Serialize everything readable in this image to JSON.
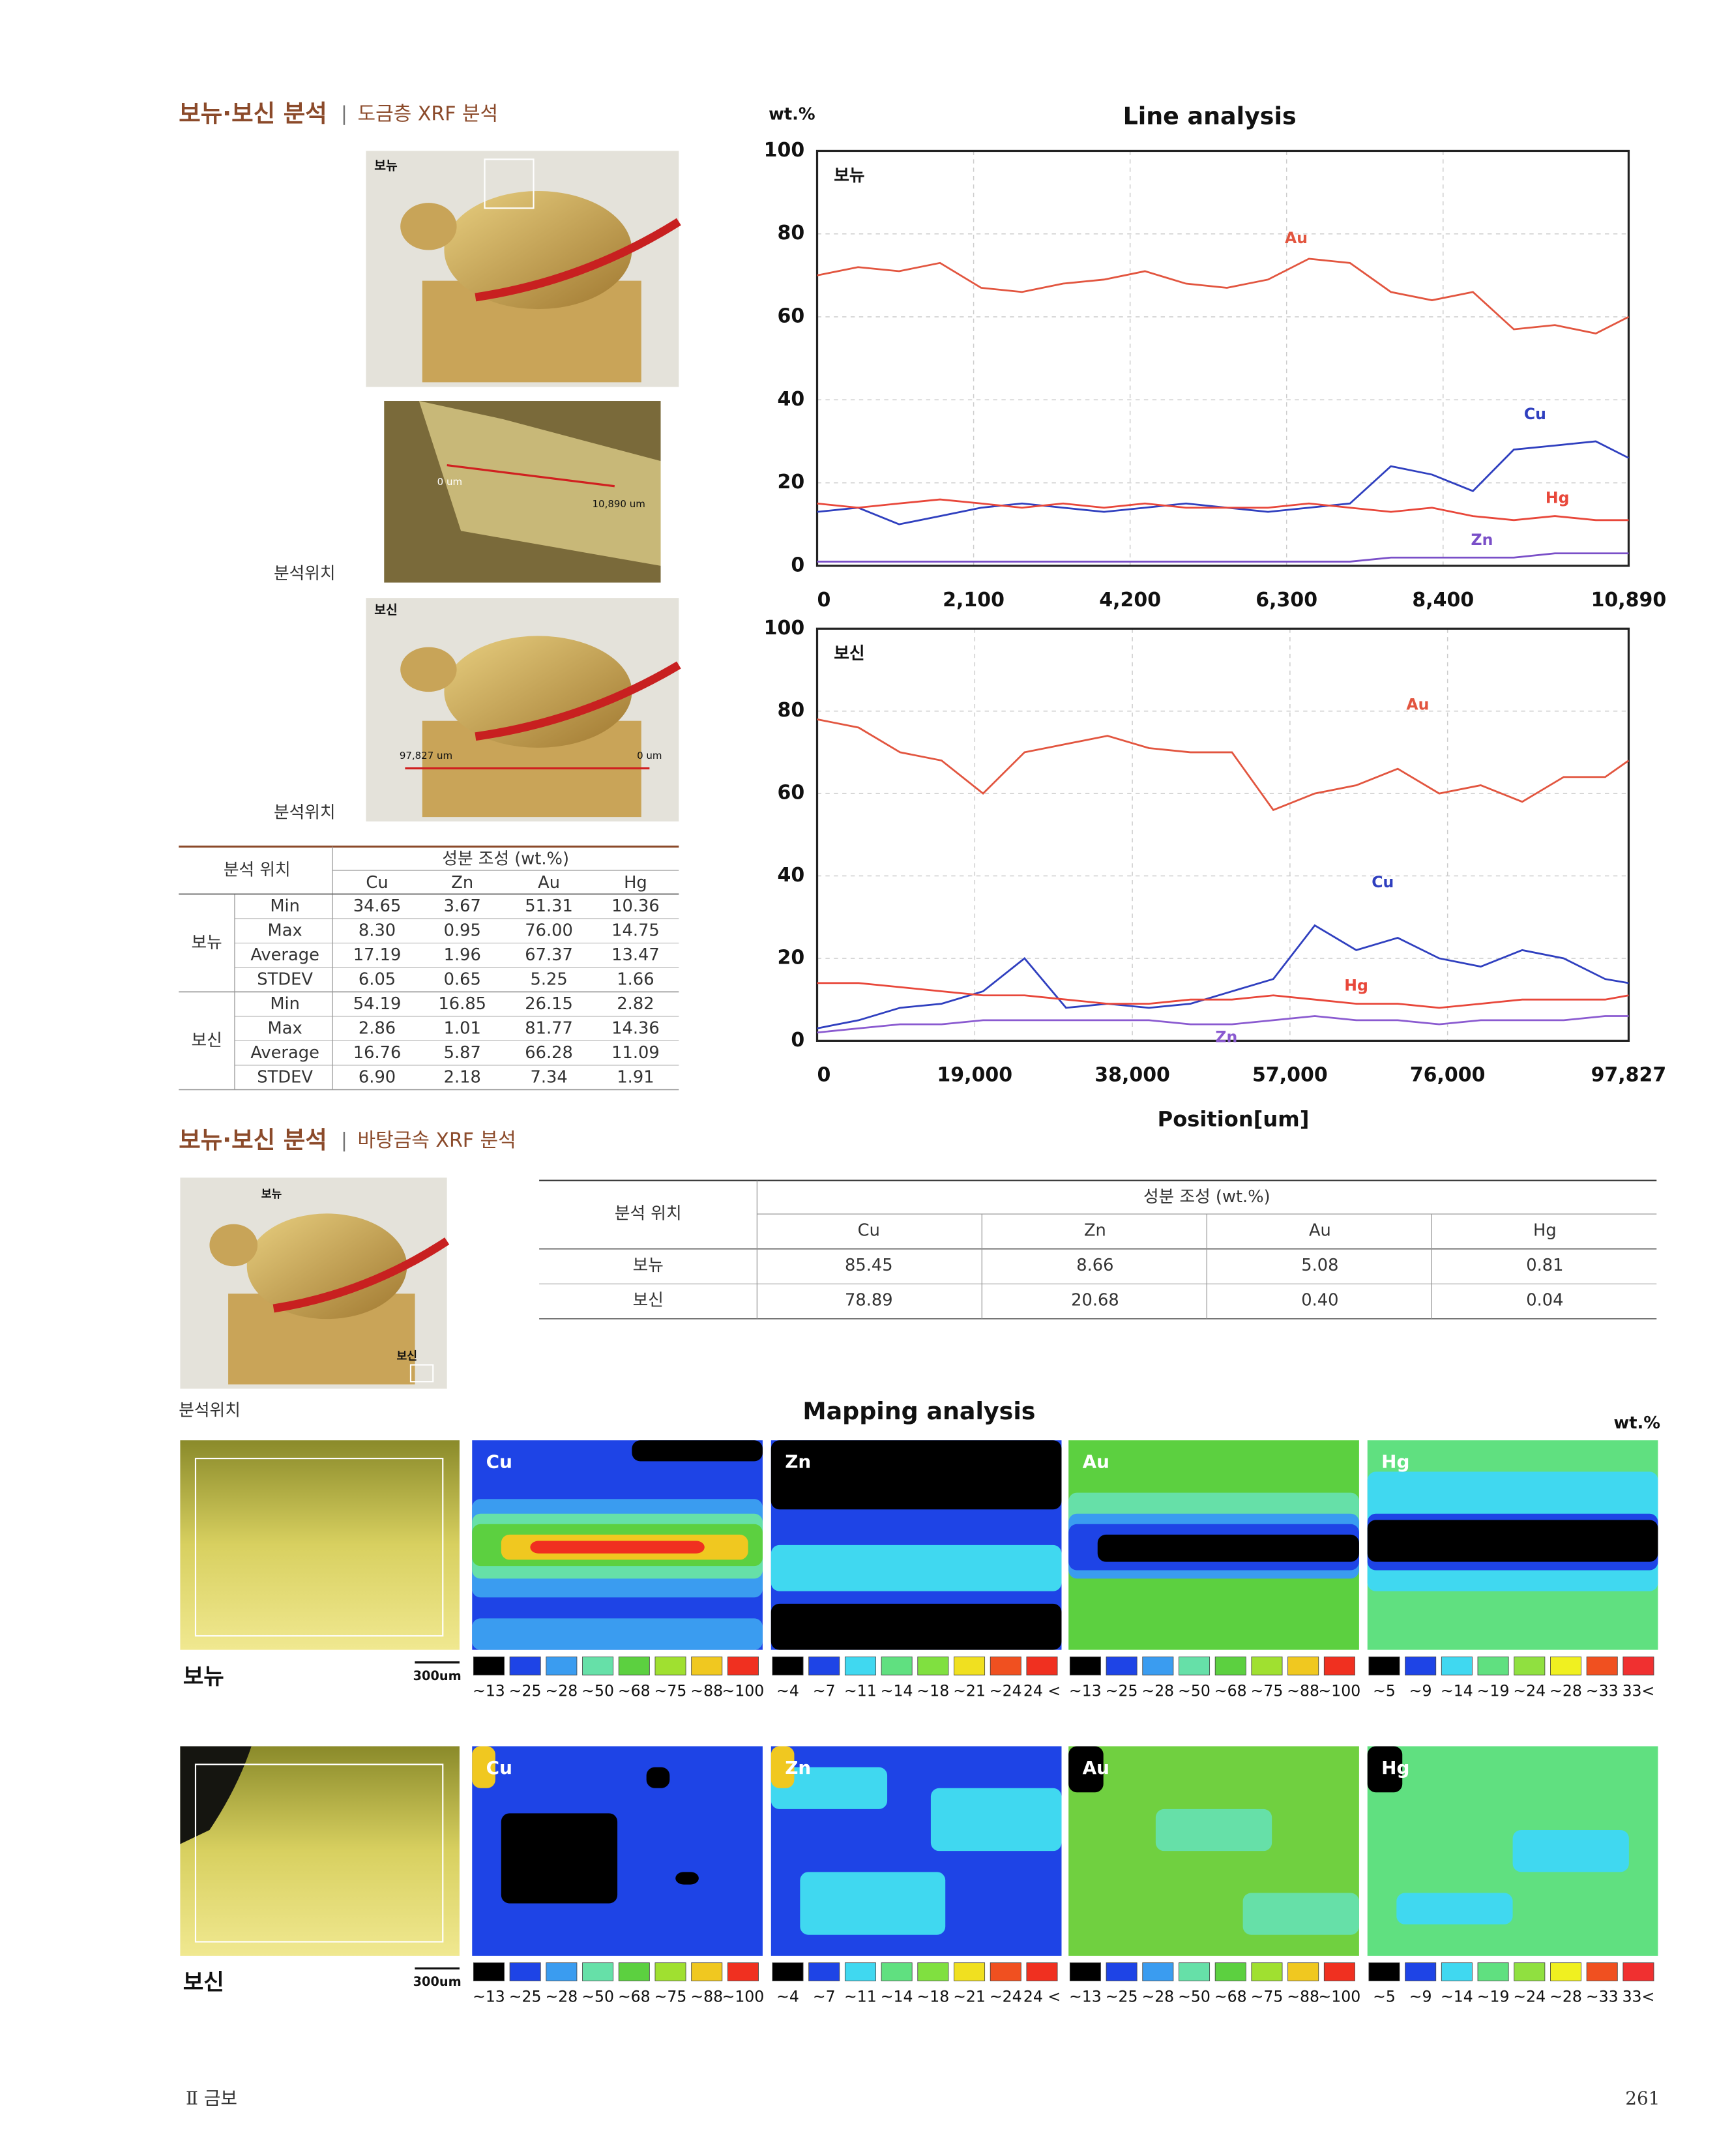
{
  "header": {
    "section1_title": "보뉴·보신 분석",
    "section1_sub": "도금층 XRF 분석",
    "section2_title": "보뉴·보신 분석",
    "section2_sub": "바탕금속 XRF 분석",
    "separator": "|"
  },
  "photos": {
    "top_label": "보뉴",
    "closeup_start": "0 um",
    "closeup_end": "10,890 um",
    "side_label": "보신",
    "side_start": "97,827 um",
    "side_end": "0 um",
    "location_label": "분석위치",
    "base_label_top": "보뉴",
    "base_label_bottom": "보신"
  },
  "table1": {
    "location_header": "분석 위치",
    "composition_header": "성분 조성 (wt.%)",
    "columns": [
      "Cu",
      "Zn",
      "Au",
      "Hg"
    ],
    "groups": [
      {
        "name": "보뉴",
        "rows": [
          [
            "Min",
            "34.65",
            "3.67",
            "51.31",
            "10.36"
          ],
          [
            "Max",
            "8.30",
            "0.95",
            "76.00",
            "14.75"
          ],
          [
            "Average",
            "17.19",
            "1.96",
            "67.37",
            "13.47"
          ],
          [
            "STDEV",
            "6.05",
            "0.65",
            "5.25",
            "1.66"
          ]
        ]
      },
      {
        "name": "보신",
        "rows": [
          [
            "Min",
            "54.19",
            "16.85",
            "26.15",
            "2.82"
          ],
          [
            "Max",
            "2.86",
            "1.01",
            "81.77",
            "14.36"
          ],
          [
            "Average",
            "16.76",
            "5.87",
            "66.28",
            "11.09"
          ],
          [
            "STDEV",
            "6.90",
            "2.18",
            "7.34",
            "1.91"
          ]
        ]
      }
    ]
  },
  "table2": {
    "location_header": "분석 위치",
    "composition_header": "성분 조성 (wt.%)",
    "columns": [
      "Cu",
      "Zn",
      "Au",
      "Hg"
    ],
    "rows": [
      [
        "보뉴",
        "85.45",
        "8.66",
        "5.08",
        "0.81"
      ],
      [
        "보신",
        "78.89",
        "20.68",
        "0.40",
        "0.04"
      ]
    ]
  },
  "chart_data": [
    {
      "type": "line",
      "title": "Line analysis",
      "y_label": "wt.%",
      "label": "보뉴",
      "x": [
        0,
        550,
        1100,
        1650,
        2200,
        2750,
        3300,
        3850,
        4400,
        4950,
        5500,
        6050,
        6600,
        7150,
        7700,
        8250,
        8800,
        9350,
        9900,
        10450,
        10890
      ],
      "xlim": [
        0,
        10890
      ],
      "xticks": [
        0,
        {
          "value": 2100,
          "label": "2,100"
        },
        {
          "value": 4200,
          "label": "4,200"
        },
        {
          "value": 6300,
          "label": "6,300"
        },
        {
          "value": 8400,
          "label": "8,400"
        },
        {
          "value": 10890,
          "label": "10,890"
        }
      ],
      "ylim": [
        0,
        100
      ],
      "yticks": [
        0,
        20,
        40,
        60,
        80,
        100
      ],
      "grid": true,
      "series": [
        {
          "name": "Au",
          "color": "#e2553f",
          "values": [
            70,
            72,
            71,
            73,
            67,
            66,
            68,
            69,
            71,
            68,
            67,
            69,
            74,
            73,
            66,
            64,
            66,
            57,
            58,
            56,
            60
          ]
        },
        {
          "name": "Cu",
          "color": "#2f3fbf",
          "values": [
            13,
            14,
            10,
            12,
            14,
            15,
            14,
            13,
            14,
            15,
            14,
            13,
            14,
            15,
            24,
            22,
            18,
            28,
            29,
            30,
            26
          ]
        },
        {
          "name": "Hg",
          "color": "#e8473a",
          "values": [
            15,
            14,
            15,
            16,
            15,
            14,
            15,
            14,
            15,
            14,
            14,
            14,
            15,
            14,
            13,
            14,
            12,
            11,
            12,
            11,
            11
          ]
        },
        {
          "name": "Zn",
          "color": "#7a4fc8",
          "values": [
            1,
            1,
            1,
            1,
            1,
            1,
            1,
            1,
            1,
            1,
            1,
            1,
            1,
            1,
            2,
            2,
            2,
            2,
            3,
            3,
            3
          ]
        }
      ]
    },
    {
      "type": "line",
      "label": "보신",
      "x_label": "Position[um]",
      "x": [
        0,
        5000,
        10000,
        15000,
        20000,
        25000,
        30000,
        35000,
        40000,
        45000,
        50000,
        55000,
        60000,
        65000,
        70000,
        75000,
        80000,
        85000,
        90000,
        95000,
        97827
      ],
      "xlim": [
        0,
        97827
      ],
      "xticks": [
        0,
        {
          "value": 19000,
          "label": "19,000"
        },
        {
          "value": 38000,
          "label": "38,000"
        },
        {
          "value": 57000,
          "label": "57,000"
        },
        {
          "value": 76000,
          "label": "76,000"
        },
        {
          "value": 97827,
          "label": "97,827"
        }
      ],
      "ylim": [
        0,
        100
      ],
      "yticks": [
        0,
        20,
        40,
        60,
        80,
        100
      ],
      "grid": true,
      "series": [
        {
          "name": "Au",
          "color": "#e2553f",
          "values": [
            78,
            76,
            70,
            68,
            60,
            70,
            72,
            74,
            71,
            70,
            70,
            56,
            60,
            62,
            66,
            60,
            62,
            58,
            64,
            64,
            68
          ]
        },
        {
          "name": "Cu",
          "color": "#2f3fbf",
          "values": [
            3,
            5,
            8,
            9,
            12,
            20,
            8,
            9,
            8,
            9,
            12,
            15,
            28,
            22,
            25,
            20,
            18,
            22,
            20,
            15,
            14
          ]
        },
        {
          "name": "Hg",
          "color": "#e8473a",
          "values": [
            14,
            14,
            13,
            12,
            11,
            11,
            10,
            9,
            9,
            10,
            10,
            11,
            10,
            9,
            9,
            8,
            9,
            10,
            10,
            10,
            11
          ]
        },
        {
          "name": "Zn",
          "color": "#8a5ad0",
          "values": [
            2,
            3,
            4,
            4,
            5,
            5,
            5,
            5,
            5,
            4,
            4,
            5,
            6,
            5,
            5,
            4,
            5,
            5,
            5,
            6,
            6
          ]
        }
      ]
    }
  ],
  "mapping": {
    "title": "Mapping analysis",
    "unit": "wt.%",
    "scale": "300um",
    "samples": [
      "보뉴",
      "보신"
    ],
    "elements": [
      {
        "name": "Cu",
        "legend": [
          "~13",
          "~25",
          "~28",
          "~50",
          "~68",
          "~75",
          "~88",
          "~100"
        ],
        "colors": [
          "#000000",
          "#1e44e6",
          "#3a9cf0",
          "#66e0a8",
          "#5cd040",
          "#a0e030",
          "#f0c820",
          "#f03020"
        ]
      },
      {
        "name": "Zn",
        "legend": [
          "~4",
          "~7",
          "~11",
          "~14",
          "~18",
          "~21",
          "~24",
          "24 <"
        ],
        "colors": [
          "#000000",
          "#1e44e6",
          "#40d8f0",
          "#60e080",
          "#80e040",
          "#f0e020",
          "#f05020",
          "#f03020"
        ]
      },
      {
        "name": "Au",
        "legend": [
          "~13",
          "~25",
          "~28",
          "~50",
          "~68",
          "~75",
          "~88",
          "~100"
        ],
        "colors": [
          "#000000",
          "#1e44e6",
          "#3a9cf0",
          "#66e0a8",
          "#5cd040",
          "#a0e030",
          "#f0c820",
          "#f03020"
        ]
      },
      {
        "name": "Hg",
        "legend": [
          "~5",
          "~9",
          "~14",
          "~19",
          "~24",
          "~28",
          "~33",
          "33<"
        ],
        "colors": [
          "#000000",
          "#1e44e6",
          "#40d8f0",
          "#60e080",
          "#90e040",
          "#f0f020",
          "#f05020",
          "#f03030"
        ]
      }
    ]
  },
  "footer": {
    "section": "Ⅱ 금보",
    "page": "261"
  }
}
